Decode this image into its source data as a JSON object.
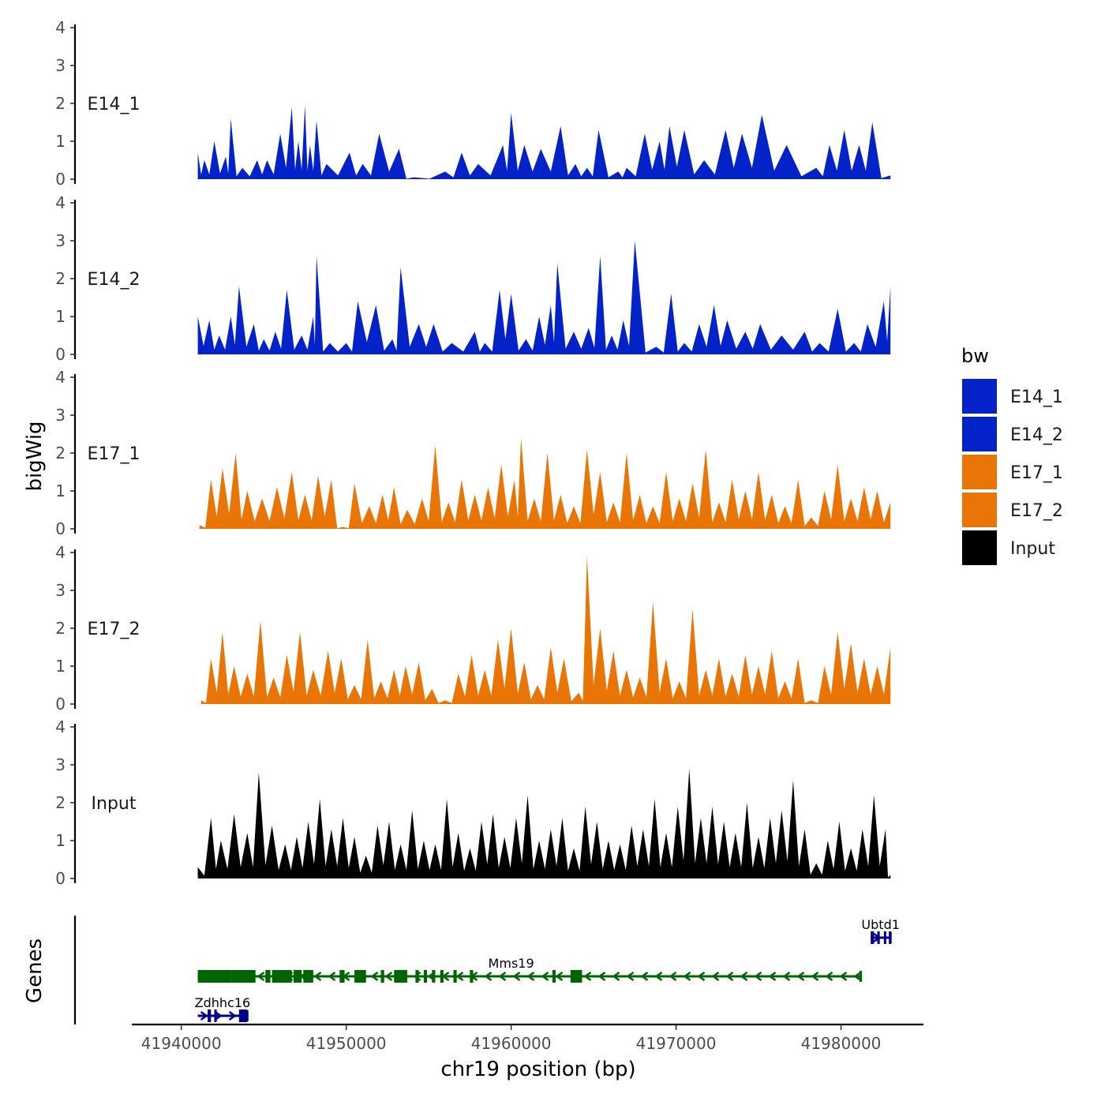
{
  "chart_data": {
    "type": "area",
    "xlabel": "chr19 position (bp)",
    "ylabel": "bigWig",
    "genes_label": "Genes",
    "xlim": [
      41937000,
      41985000
    ],
    "ylim": [
      0,
      4
    ],
    "yticks": [
      0,
      1,
      2,
      3,
      4
    ],
    "xticks": [
      41940000,
      41950000,
      41960000,
      41970000,
      41980000
    ],
    "xtick_labels": [
      "41940000",
      "41950000",
      "41960000",
      "41970000",
      "41980000"
    ],
    "legend": {
      "title": "bw",
      "position": "right",
      "entries": [
        {
          "label": "E14_1",
          "color": "#0322C8"
        },
        {
          "label": "E14_2",
          "color": "#0322C8"
        },
        {
          "label": "E17_1",
          "color": "#E87505"
        },
        {
          "label": "E17_2",
          "color": "#E87505"
        },
        {
          "label": "Input",
          "color": "#000000"
        }
      ]
    },
    "series": [
      {
        "name": "E14_1",
        "color": "#0322C8",
        "x": [
          41941000,
          41941400,
          41942000,
          41942700,
          41943000,
          41943700,
          41944600,
          41945200,
          41946000,
          41946700,
          41947100,
          41947500,
          41947800,
          41948200,
          41948800,
          41950200,
          41951000,
          41952000,
          41953200,
          41954100,
          41956000,
          41957000,
          41958000,
          41959500,
          41960000,
          41960800,
          41961800,
          41963000,
          41963900,
          41964600,
          41965300,
          41966500,
          41967000,
          41968100,
          41969000,
          41969600,
          41970500,
          41971700,
          41973000,
          41974000,
          41975200,
          41976700,
          41978500,
          41979300,
          41980200,
          41981100,
          41981900,
          41983000
        ],
        "values": [
          0.7,
          0.5,
          1.0,
          0.6,
          1.6,
          0.3,
          0.5,
          0.5,
          1.2,
          1.9,
          1.0,
          1.95,
          0.9,
          1.55,
          0.4,
          0.7,
          0.4,
          1.2,
          0.8,
          0.05,
          0.2,
          0.7,
          0.4,
          0.9,
          1.75,
          0.9,
          0.8,
          1.4,
          0.4,
          0.3,
          1.3,
          0.2,
          0.3,
          1.2,
          1.0,
          1.4,
          1.3,
          0.5,
          1.3,
          1.2,
          1.7,
          0.9,
          0.3,
          0.9,
          1.3,
          0.9,
          1.5,
          0.1
        ]
      },
      {
        "name": "E14_2",
        "color": "#0322C8",
        "x": [
          41941000,
          41941700,
          41942300,
          41943000,
          41943500,
          41944400,
          41945000,
          41945700,
          41946400,
          41947300,
          41948000,
          41948200,
          41949000,
          41950000,
          41950700,
          41951800,
          41952800,
          41953300,
          41954400,
          41955300,
          41956400,
          41957800,
          41958400,
          41959300,
          41960000,
          41960900,
          41961700,
          41962400,
          41962800,
          41963800,
          41964700,
          41965400,
          41966100,
          41966800,
          41967500,
          41968800,
          41969700,
          41970500,
          41971400,
          41972300,
          41973100,
          41974200,
          41975100,
          41976400,
          41977800,
          41978700,
          41979800,
          41980800,
          41981600,
          41982600,
          41983000
        ],
        "values": [
          1.0,
          0.9,
          0.5,
          1.0,
          1.8,
          0.8,
          0.4,
          0.6,
          1.7,
          0.5,
          1.0,
          2.6,
          0.3,
          0.3,
          1.4,
          1.3,
          0.4,
          2.3,
          0.8,
          0.8,
          0.3,
          0.6,
          0.3,
          1.7,
          1.6,
          0.4,
          1.0,
          1.3,
          2.4,
          0.6,
          0.7,
          2.6,
          0.5,
          0.9,
          3.0,
          0.2,
          1.6,
          0.3,
          0.8,
          1.3,
          0.9,
          0.6,
          0.8,
          0.5,
          0.6,
          0.3,
          1.2,
          0.3,
          0.8,
          1.4,
          1.8
        ]
      },
      {
        "name": "E17_1",
        "color": "#E87505",
        "x": [
          41941100,
          41941800,
          41942500,
          41943300,
          41944000,
          41944900,
          41945800,
          41946700,
          41947500,
          41948300,
          41949100,
          41949800,
          41950500,
          41951400,
          41952200,
          41952900,
          41953700,
          41954600,
          41955400,
          41956200,
          41957000,
          41957800,
          41958600,
          41959400,
          41960200,
          41960600,
          41961400,
          41962200,
          41963000,
          41963800,
          41964600,
          41965400,
          41966200,
          41967000,
          41967800,
          41968600,
          41969400,
          41970200,
          41971000,
          41971800,
          41972600,
          41973400,
          41974200,
          41975000,
          41975800,
          41976600,
          41977400,
          41978200,
          41979000,
          41979800,
          41980600,
          41981400,
          41982200,
          41983000
        ],
        "values": [
          0.1,
          1.3,
          1.6,
          2.0,
          1.0,
          0.8,
          1.1,
          1.5,
          0.9,
          1.4,
          1.3,
          0.05,
          1.2,
          0.6,
          0.9,
          1.1,
          0.5,
          0.8,
          2.2,
          0.7,
          1.3,
          0.9,
          1.1,
          1.7,
          1.3,
          2.4,
          0.8,
          2.0,
          0.9,
          0.6,
          2.1,
          1.5,
          0.7,
          2.0,
          0.9,
          0.6,
          1.5,
          0.8,
          1.2,
          2.1,
          0.7,
          1.3,
          1.0,
          1.5,
          0.9,
          0.6,
          1.3,
          0.3,
          1.0,
          1.7,
          0.8,
          1.1,
          1.0,
          0.7
        ]
      },
      {
        "name": "E17_2",
        "color": "#E87505",
        "x": [
          41941200,
          41941800,
          41942500,
          41943200,
          41944000,
          41944800,
          41945600,
          41946400,
          41947200,
          41948000,
          41948900,
          41949700,
          41950500,
          41951300,
          41952100,
          41952900,
          41953600,
          41954400,
          41955200,
          41956000,
          41956800,
          41957600,
          41958400,
          41959200,
          41960000,
          41960800,
          41961600,
          41962400,
          41963200,
          41964100,
          41964600,
          41965400,
          41966200,
          41967000,
          41967800,
          41968600,
          41969400,
          41970200,
          41971000,
          41971800,
          41972600,
          41973400,
          41974200,
          41975000,
          41975800,
          41976600,
          41977400,
          41978200,
          41979000,
          41979800,
          41980600,
          41981400,
          41982200,
          41983000
        ],
        "values": [
          0.1,
          1.2,
          1.9,
          1.0,
          0.8,
          2.2,
          0.7,
          1.3,
          1.9,
          0.9,
          1.4,
          1.2,
          0.5,
          1.7,
          0.6,
          0.9,
          1.0,
          1.1,
          0.4,
          0.1,
          0.8,
          1.3,
          0.9,
          1.7,
          2.0,
          1.1,
          0.5,
          1.5,
          1.2,
          0.3,
          3.9,
          2.0,
          1.4,
          0.9,
          0.7,
          2.7,
          1.2,
          0.6,
          2.5,
          0.9,
          1.2,
          0.8,
          1.3,
          1.0,
          1.4,
          0.6,
          1.2,
          0.1,
          1.0,
          1.9,
          1.6,
          1.2,
          1.0,
          1.5
        ]
      },
      {
        "name": "Input",
        "color": "#000000",
        "x": [
          41941000,
          41941800,
          41942400,
          41943200,
          41944000,
          41944700,
          41945500,
          41946300,
          41947000,
          41947700,
          41948400,
          41949100,
          41949800,
          41950500,
          41951200,
          41951900,
          41952600,
          41953300,
          41954000,
          41954700,
          41955400,
          41956100,
          41956800,
          41957500,
          41958200,
          41958900,
          41959600,
          41960300,
          41961000,
          41961700,
          41962400,
          41963100,
          41963800,
          41964500,
          41965200,
          41965900,
          41966600,
          41967300,
          41968000,
          41968700,
          41969400,
          41970100,
          41970800,
          41971500,
          41972200,
          41972900,
          41973600,
          41974300,
          41975000,
          41975700,
          41976400,
          41977100,
          41977800,
          41978500,
          41979200,
          41979900,
          41980600,
          41981300,
          41982000,
          41982700,
          41983000
        ],
        "values": [
          0.3,
          1.6,
          1.0,
          1.7,
          1.2,
          2.8,
          1.4,
          0.9,
          1.1,
          1.5,
          2.1,
          1.3,
          1.6,
          1.1,
          0.6,
          1.4,
          1.5,
          0.9,
          1.8,
          1.0,
          0.9,
          2.1,
          1.2,
          0.8,
          1.5,
          1.7,
          1.1,
          1.6,
          2.2,
          1.0,
          1.3,
          1.6,
          0.8,
          1.9,
          1.5,
          1.0,
          0.9,
          1.4,
          1.3,
          2.1,
          1.2,
          1.9,
          2.9,
          1.6,
          1.9,
          1.5,
          1.2,
          2.0,
          1.1,
          1.6,
          1.8,
          2.6,
          1.3,
          0.4,
          1.0,
          1.5,
          0.8,
          1.3,
          2.2,
          1.3,
          0.1
        ]
      }
    ],
    "genes": [
      {
        "name": "Ubtd1",
        "strand": "+",
        "start": 41981800,
        "end": 41983000,
        "color": "#00008B",
        "row": 0,
        "exons": [
          [
            41981800,
            41982000
          ],
          [
            41982200,
            41982350
          ],
          [
            41982600,
            41982700
          ],
          [
            41982900,
            41983000
          ]
        ]
      },
      {
        "name": "Mms19",
        "strand": "-",
        "start": 41941000,
        "end": 41981200,
        "color": "#006400",
        "row": 1,
        "exons": [
          [
            41941000,
            41943000
          ],
          [
            41943000,
            41944500
          ],
          [
            41945100,
            41945400
          ],
          [
            41945500,
            41946700
          ],
          [
            41946800,
            41947300
          ],
          [
            41947400,
            41948000
          ],
          [
            41949600,
            41949900
          ],
          [
            41950500,
            41951200
          ],
          [
            41952100,
            41952300
          ],
          [
            41952900,
            41953700
          ],
          [
            41954200,
            41954400
          ],
          [
            41954700,
            41954900
          ],
          [
            41955200,
            41955400
          ],
          [
            41955700,
            41955900
          ],
          [
            41956500,
            41956700
          ],
          [
            41957500,
            41957700
          ],
          [
            41962500,
            41962700
          ],
          [
            41963600,
            41964300
          ]
        ]
      },
      {
        "name": "Zdhhc16",
        "strand": "+",
        "start": 41941000,
        "end": 41944000,
        "color": "#00008B",
        "row": 2,
        "exons": [
          [
            41941600,
            41941800
          ],
          [
            41942000,
            41942150
          ],
          [
            41943500,
            41944000
          ]
        ]
      }
    ]
  }
}
